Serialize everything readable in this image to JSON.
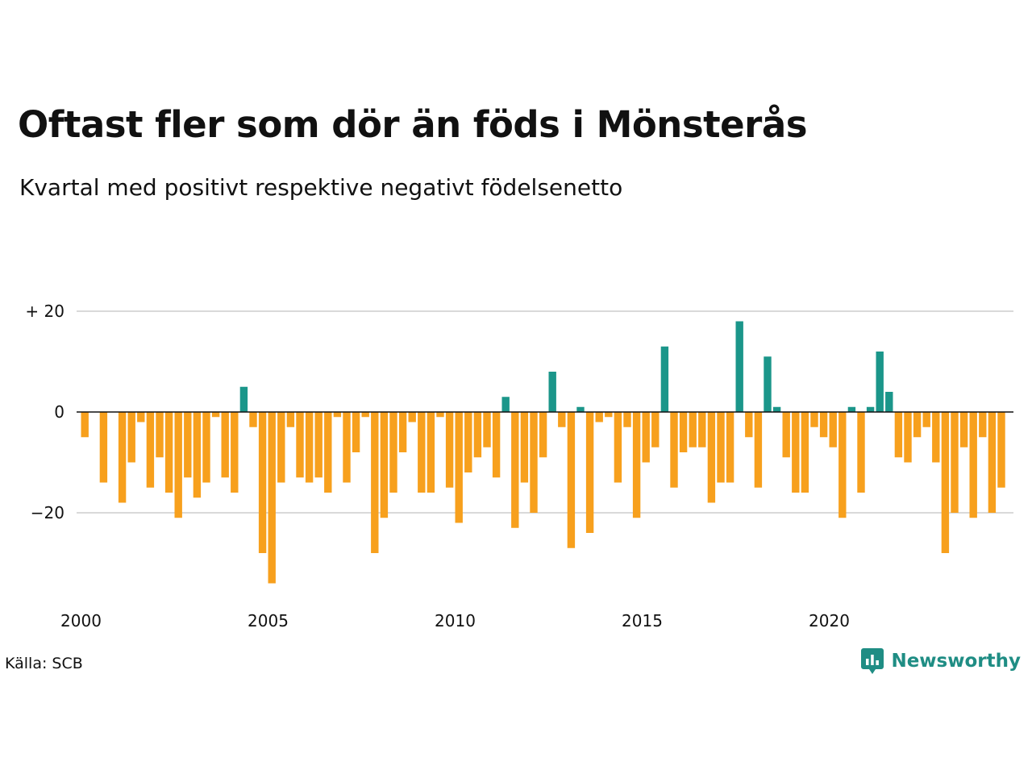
{
  "title": "Oftast fler som dör än föds i Mönsterås",
  "subtitle": "Kvartal med positivt respektive negativt födelsenetto",
  "source": "Källa: SCB",
  "brand": {
    "name": "Newsworthy",
    "icon": "newsworthy-logo-icon"
  },
  "colors": {
    "positive": "#1b968a",
    "negative": "#f7a01d",
    "grid": "#d9d9d9",
    "zero_line": "#111111"
  },
  "chart_data": {
    "type": "bar",
    "title": "Oftast fler som dör än föds i Mönsterås",
    "subtitle": "Kvartal med positivt respektive negativt födelsenetto",
    "xlabel": "",
    "ylabel": "",
    "x_start": 2000,
    "x_step": 0.25,
    "ylim": [
      -36,
      22
    ],
    "xlim": [
      2000,
      2025
    ],
    "y_ticks": [
      20,
      0,
      -20
    ],
    "y_tick_labels": [
      "+ 20",
      "0",
      "−20"
    ],
    "x_ticks": [
      2000,
      2005,
      2010,
      2015,
      2020
    ],
    "x_tick_labels": [
      "2000",
      "2005",
      "2010",
      "2015",
      "2020"
    ],
    "grid": true,
    "legend": "none",
    "values": [
      -5,
      0,
      -14,
      0,
      -18,
      -10,
      -2,
      -15,
      -9,
      -16,
      -21,
      -13,
      -17,
      -14,
      -1,
      -13,
      -16,
      5,
      -3,
      -28,
      -34,
      -14,
      -3,
      -13,
      -14,
      -13,
      -16,
      -1,
      -14,
      -8,
      -1,
      -28,
      -21,
      -16,
      -8,
      -2,
      -16,
      -16,
      -1,
      -15,
      -22,
      -12,
      -9,
      -7,
      -13,
      3,
      -23,
      -14,
      -20,
      -9,
      8,
      -3,
      -27,
      1,
      -24,
      -2,
      -1,
      -14,
      -3,
      -21,
      -10,
      -7,
      13,
      -15,
      -8,
      -7,
      -7,
      -18,
      -14,
      -14,
      18,
      -5,
      -15,
      11,
      1,
      -9,
      -16,
      -16,
      -3,
      -5,
      -7,
      -21,
      1,
      -16,
      1,
      12,
      4,
      -9,
      -10,
      -5,
      -3,
      -10,
      -28,
      -20,
      -7,
      -21,
      -5,
      -20,
      -15
    ]
  }
}
